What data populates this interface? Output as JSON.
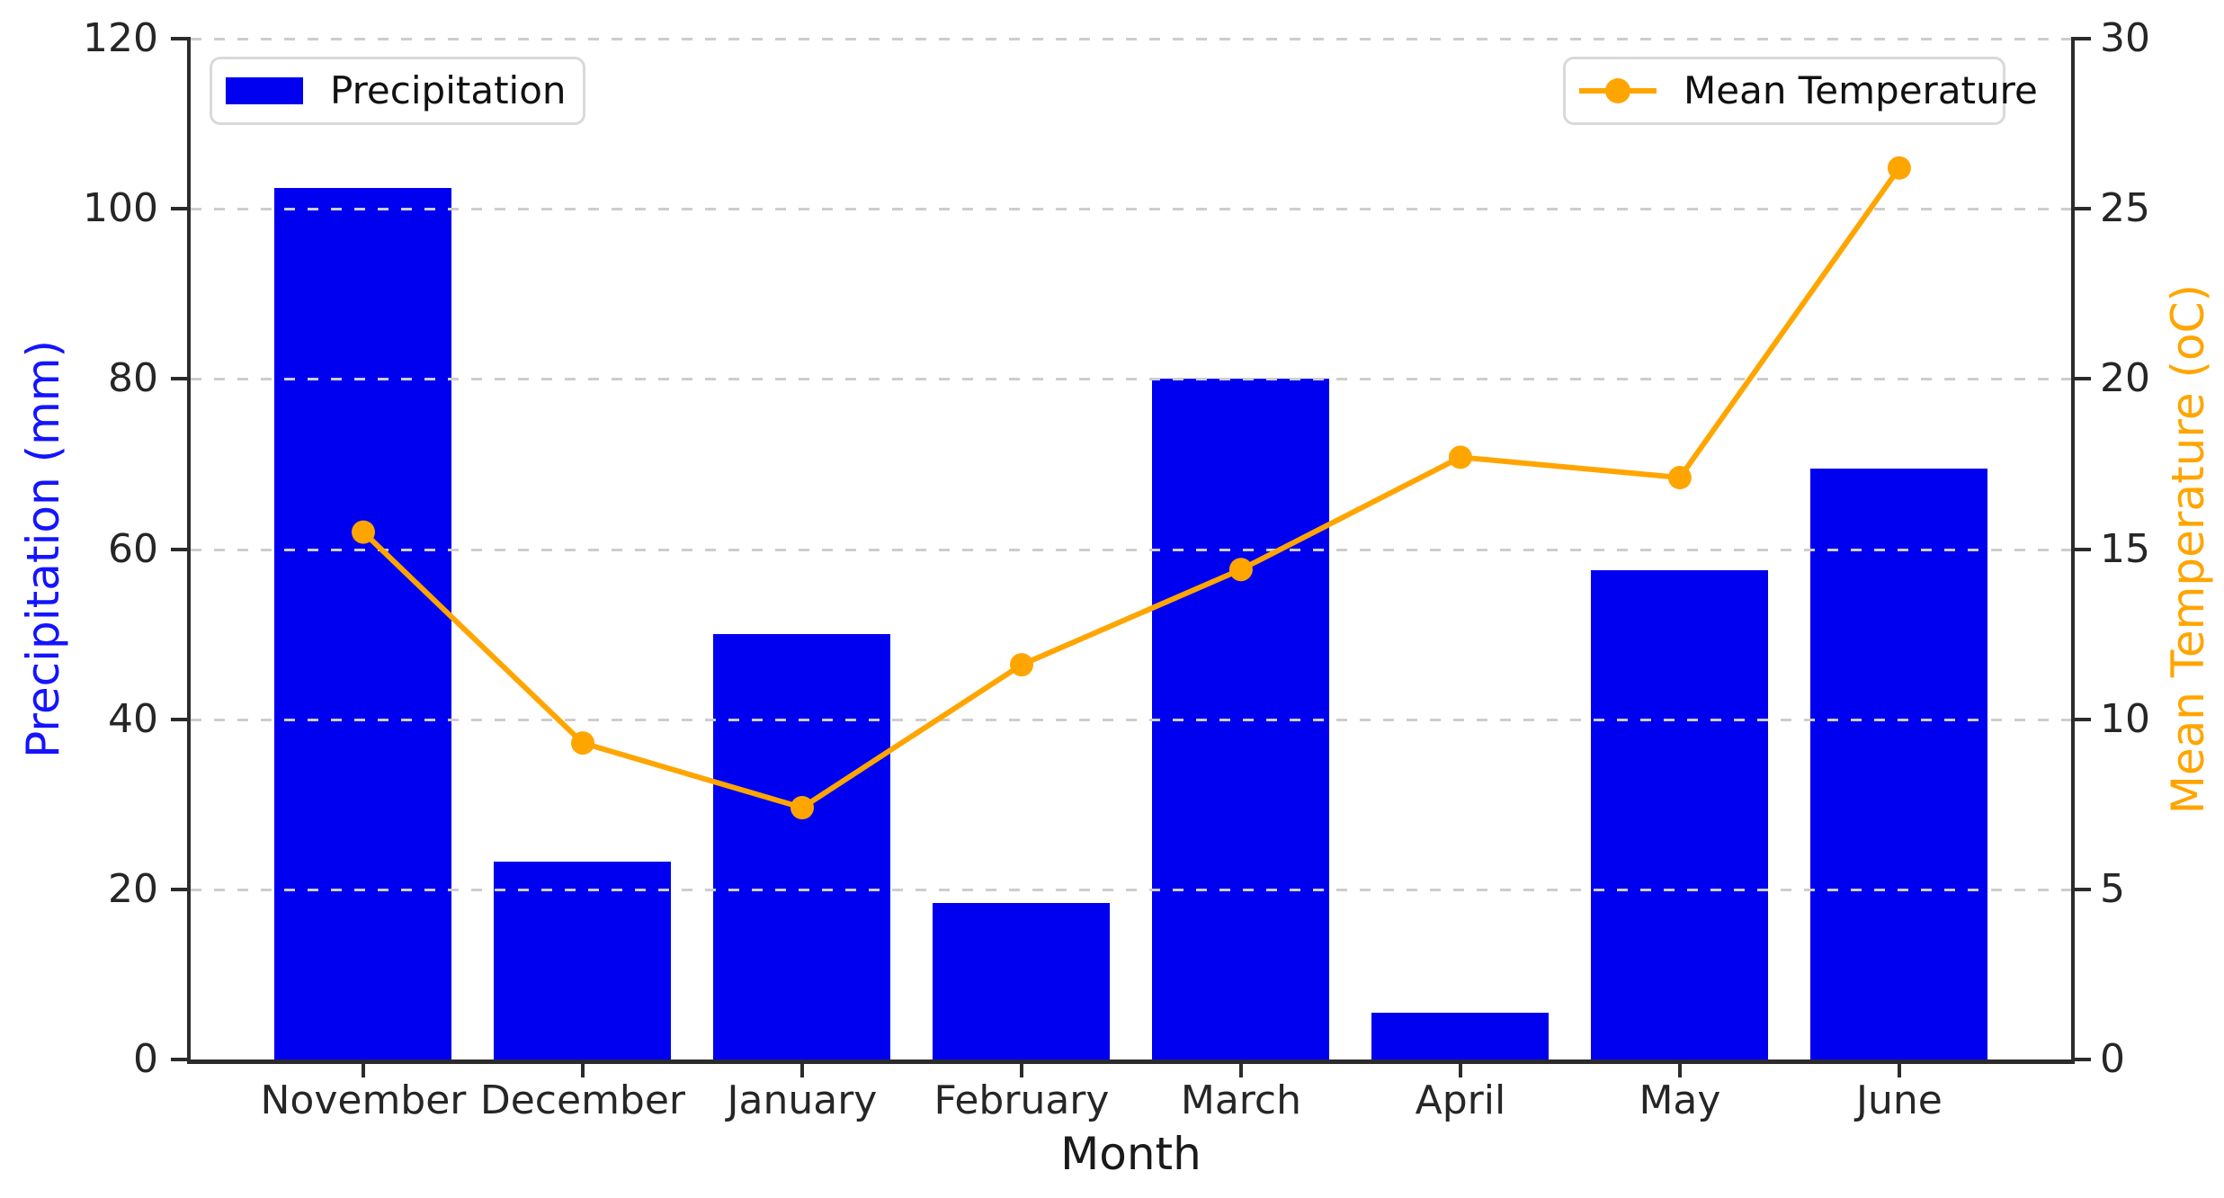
{
  "chart_data": {
    "type": "bar",
    "categories": [
      "November",
      "December",
      "January",
      "February",
      "March",
      "April",
      "May",
      "June"
    ],
    "series": [
      {
        "name": "Precipitation",
        "type": "bar",
        "axis": "left",
        "values": [
          102.5,
          23.3,
          50,
          18.4,
          80,
          5.5,
          57.5,
          69.5
        ]
      },
      {
        "name": "Mean Temperature",
        "type": "line",
        "axis": "right",
        "values": [
          15.5,
          9.3,
          7.4,
          11.6,
          14.4,
          17.7,
          17.1,
          26.2
        ]
      }
    ],
    "title": "",
    "xlabel": "Month",
    "ylabel_left": "Precipitation (mm)",
    "ylabel_right": "Mean Temperature (oC)",
    "ylim_left": [
      0,
      120
    ],
    "ylim_right": [
      0,
      30
    ],
    "yticks_left": [
      0,
      20,
      40,
      60,
      80,
      100,
      120
    ],
    "yticks_right": [
      0,
      5,
      10,
      15,
      20,
      25,
      30
    ],
    "grid": "horizontal dashed",
    "legend_positions": [
      "upper left",
      "upper right"
    ]
  },
  "legend": {
    "precipitation_label": "Precipitation",
    "temperature_label": "Mean Temperature"
  },
  "colors": {
    "bar": "#0000f0",
    "line": "#ffa500",
    "left_axis_label": "#1414ff",
    "right_axis_label": "#ffa500",
    "tick_label": "#262626",
    "grid": "#cdcdcd",
    "spine": "#2b2b2b",
    "legend_border": "#d9d9d9",
    "background": "#ffffff"
  }
}
